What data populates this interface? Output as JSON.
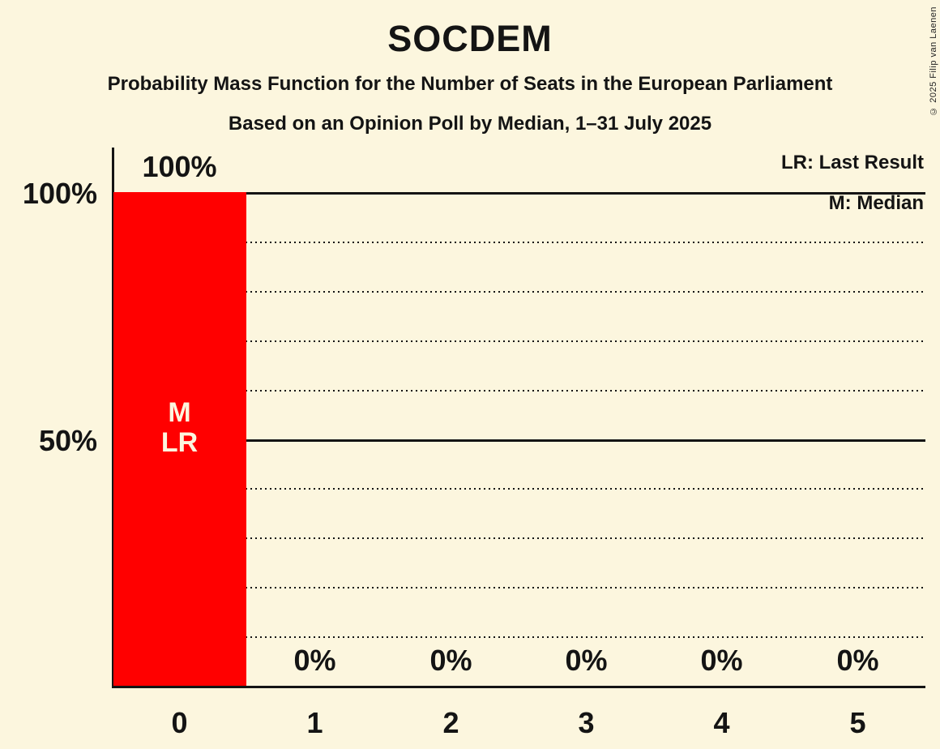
{
  "title": "SOCDEM",
  "subtitle1": "Probability Mass Function for the Number of Seats in the European Parliament",
  "subtitle2": "Based on an Opinion Poll by Median, 1–31 July 2025",
  "copyright": "© 2025 Filip van Laenen",
  "legend": {
    "lr": "LR: Last Result",
    "m": "M: Median"
  },
  "colors": {
    "background": "#FCF6DE",
    "bar": "#FF0000",
    "bar_text": "#FCF6DE",
    "line": "#141414",
    "text": "#141414"
  },
  "chart_data": {
    "type": "bar",
    "title": "SOCDEM",
    "categories": [
      "0",
      "1",
      "2",
      "3",
      "4",
      "5"
    ],
    "values": [
      100,
      0,
      0,
      0,
      0,
      0
    ],
    "value_labels": [
      "100%",
      "0%",
      "0%",
      "0%",
      "0%",
      "0%"
    ],
    "bar_annotations": [
      [
        "M",
        "LR"
      ],
      [],
      [],
      [],
      [],
      []
    ],
    "median_seats": 0,
    "last_result_seats": 0,
    "ylim": [
      0,
      100
    ],
    "y_axis_labels": [
      {
        "value": 100,
        "label": "100%"
      },
      {
        "value": 50,
        "label": "50%"
      }
    ],
    "gridlines": {
      "dotted_every": 10,
      "solid_at": [
        50,
        100
      ]
    },
    "legend_position": "top-right"
  }
}
